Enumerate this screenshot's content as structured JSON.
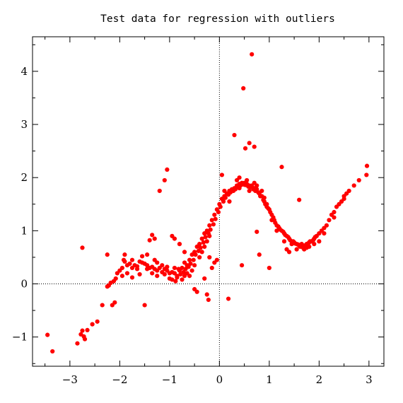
{
  "chart_data": {
    "type": "scatter",
    "title": "Test data for regression with outliers",
    "xlabel": "",
    "ylabel": "",
    "xlim": [
      -3.75,
      3.3
    ],
    "ylim": [
      -1.55,
      4.65
    ],
    "x_ticks": [
      -3,
      -2,
      -1,
      0,
      1,
      2,
      3
    ],
    "x_tick_labels": [
      "−3",
      "−2",
      "−1",
      "0",
      "1",
      "2",
      "3"
    ],
    "y_ticks": [
      -1,
      0,
      1,
      2,
      3,
      4
    ],
    "y_tick_labels": [
      "−1",
      "0",
      "1",
      "2",
      "3",
      "4"
    ],
    "zero_lines": "dotted",
    "grid": false,
    "legend": "none",
    "marker_color": "#ff0000",
    "series": [
      {
        "name": "",
        "points": [
          [
            -3.45,
            -0.96
          ],
          [
            -3.35,
            -1.27
          ],
          [
            -2.85,
            -1.12
          ],
          [
            -2.78,
            -0.95
          ],
          [
            -2.75,
            -0.88
          ],
          [
            -2.72,
            -0.99
          ],
          [
            -2.7,
            -1.04
          ],
          [
            -2.65,
            -0.87
          ],
          [
            -2.55,
            -0.76
          ],
          [
            -2.45,
            -0.71
          ],
          [
            -2.35,
            -0.4
          ],
          [
            -2.25,
            -0.05
          ],
          [
            -2.22,
            -0.03
          ],
          [
            -2.18,
            0.02
          ],
          [
            -2.12,
            0.05
          ],
          [
            -2.08,
            0.1
          ],
          [
            -2.05,
            0.2
          ],
          [
            -2.0,
            0.25
          ],
          [
            -1.95,
            0.3
          ],
          [
            -1.92,
            0.45
          ],
          [
            -1.9,
            0.42
          ],
          [
            -1.85,
            0.35
          ],
          [
            -1.8,
            0.38
          ],
          [
            -1.75,
            0.3
          ],
          [
            -1.7,
            0.35
          ],
          [
            -1.65,
            0.33
          ],
          [
            -1.6,
            0.42
          ],
          [
            -1.55,
            0.4
          ],
          [
            -1.5,
            0.38
          ],
          [
            -1.45,
            0.35
          ],
          [
            -1.4,
            0.3
          ],
          [
            -1.35,
            0.32
          ],
          [
            -1.3,
            0.28
          ],
          [
            -1.25,
            0.25
          ],
          [
            -1.2,
            0.3
          ],
          [
            -1.15,
            0.22
          ],
          [
            -1.1,
            0.28
          ],
          [
            -1.05,
            0.25
          ],
          [
            -1.0,
            0.2
          ],
          [
            -0.95,
            0.22
          ],
          [
            -0.9,
            0.2
          ],
          [
            -0.85,
            0.15
          ],
          [
            -0.8,
            0.25
          ],
          [
            -0.75,
            0.3
          ],
          [
            -0.7,
            0.4
          ],
          [
            -0.65,
            0.35
          ],
          [
            -0.6,
            0.45
          ],
          [
            -0.55,
            0.55
          ],
          [
            -0.5,
            0.6
          ],
          [
            -0.45,
            0.7
          ],
          [
            -0.4,
            0.75
          ],
          [
            -0.35,
            0.85
          ],
          [
            -0.3,
            0.95
          ],
          [
            -0.25,
            1.0
          ],
          [
            -0.2,
            1.1
          ],
          [
            -0.15,
            1.2
          ],
          [
            -0.1,
            1.3
          ],
          [
            -0.05,
            1.4
          ],
          [
            0.0,
            1.5
          ],
          [
            0.05,
            1.6
          ],
          [
            0.1,
            1.65
          ],
          [
            0.15,
            1.7
          ],
          [
            0.2,
            1.75
          ],
          [
            0.25,
            1.78
          ],
          [
            0.3,
            1.8
          ],
          [
            0.35,
            1.85
          ],
          [
            0.4,
            1.88
          ],
          [
            0.45,
            1.9
          ],
          [
            0.5,
            1.9
          ],
          [
            0.55,
            1.88
          ],
          [
            0.6,
            1.85
          ],
          [
            0.65,
            1.85
          ],
          [
            0.7,
            1.8
          ],
          [
            0.75,
            1.78
          ],
          [
            0.8,
            1.7
          ],
          [
            0.85,
            1.65
          ],
          [
            0.9,
            1.55
          ],
          [
            0.95,
            1.45
          ],
          [
            1.0,
            1.4
          ],
          [
            1.05,
            1.3
          ],
          [
            1.1,
            1.2
          ],
          [
            1.15,
            1.1
          ],
          [
            1.2,
            1.05
          ],
          [
            1.25,
            1.0
          ],
          [
            1.3,
            0.95
          ],
          [
            1.35,
            0.9
          ],
          [
            1.4,
            0.85
          ],
          [
            1.45,
            0.8
          ],
          [
            1.5,
            0.78
          ],
          [
            1.55,
            0.75
          ],
          [
            1.6,
            0.72
          ],
          [
            1.65,
            0.7
          ],
          [
            1.7,
            0.72
          ],
          [
            1.75,
            0.75
          ],
          [
            1.8,
            0.78
          ],
          [
            1.85,
            0.8
          ],
          [
            1.9,
            0.85
          ],
          [
            1.95,
            0.9
          ],
          [
            2.0,
            0.95
          ],
          [
            2.05,
            1.0
          ],
          [
            2.1,
            1.05
          ],
          [
            2.15,
            1.1
          ],
          [
            2.2,
            1.2
          ],
          [
            2.25,
            1.3
          ],
          [
            2.3,
            1.35
          ],
          [
            2.35,
            1.45
          ],
          [
            2.4,
            1.5
          ],
          [
            2.45,
            1.55
          ],
          [
            2.5,
            1.6
          ],
          [
            2.55,
            1.7
          ],
          [
            2.6,
            1.75
          ],
          [
            2.7,
            1.85
          ],
          [
            2.8,
            1.95
          ],
          [
            2.95,
            2.05
          ],
          [
            2.96,
            2.22
          ],
          [
            -2.15,
            -0.4
          ],
          [
            -1.9,
            0.55
          ],
          [
            -1.4,
            0.82
          ],
          [
            -1.35,
            0.92
          ],
          [
            -1.3,
            0.85
          ],
          [
            -1.2,
            1.75
          ],
          [
            -1.1,
            1.95
          ],
          [
            -1.05,
            2.15
          ],
          [
            -0.95,
            0.9
          ],
          [
            -0.9,
            0.85
          ],
          [
            -0.8,
            0.75
          ],
          [
            -0.7,
            0.6
          ],
          [
            -0.5,
            -0.1
          ],
          [
            -0.45,
            -0.15
          ],
          [
            -0.3,
            0.1
          ],
          [
            -0.2,
            0.5
          ],
          [
            -0.15,
            0.3
          ],
          [
            -0.1,
            0.4
          ],
          [
            -0.05,
            0.45
          ],
          [
            -0.25,
            -0.2
          ],
          [
            -0.22,
            -0.3
          ],
          [
            0.05,
            2.05
          ],
          [
            0.1,
            1.75
          ],
          [
            0.2,
            1.55
          ],
          [
            0.3,
            2.8
          ],
          [
            0.4,
            2.0
          ],
          [
            0.45,
            0.35
          ],
          [
            0.48,
            3.68
          ],
          [
            0.52,
            2.55
          ],
          [
            0.6,
            2.65
          ],
          [
            0.65,
            4.32
          ],
          [
            0.7,
            2.58
          ],
          [
            0.75,
            0.98
          ],
          [
            0.8,
            0.55
          ],
          [
            0.95,
            1.5
          ],
          [
            1.0,
            0.3
          ],
          [
            1.25,
            2.2
          ],
          [
            1.35,
            0.65
          ],
          [
            1.4,
            0.6
          ],
          [
            1.6,
            1.58
          ],
          [
            -2.75,
            0.68
          ],
          [
            -2.25,
            0.55
          ],
          [
            -2.1,
            -0.35
          ],
          [
            -1.5,
            -0.4
          ],
          [
            0.18,
            -0.28
          ],
          [
            -1.95,
            0.15
          ],
          [
            -1.85,
            0.2
          ],
          [
            -1.75,
            0.12
          ],
          [
            -1.6,
            0.18
          ],
          [
            -1.55,
            0.52
          ],
          [
            -1.45,
            0.55
          ],
          [
            -1.3,
            0.45
          ],
          [
            -1.25,
            0.4
          ],
          [
            -1.15,
            0.35
          ],
          [
            -1.05,
            0.32
          ],
          [
            -1.0,
            0.1
          ],
          [
            -0.95,
            0.08
          ],
          [
            -0.88,
            0.05
          ],
          [
            -0.85,
            0.12
          ],
          [
            -0.82,
            0.28
          ],
          [
            -0.78,
            0.18
          ],
          [
            -0.72,
            0.22
          ],
          [
            -0.68,
            0.28
          ],
          [
            -0.62,
            0.32
          ],
          [
            -0.58,
            0.38
          ],
          [
            -0.52,
            0.45
          ],
          [
            -0.48,
            0.55
          ],
          [
            -0.42,
            0.62
          ],
          [
            -0.38,
            0.68
          ],
          [
            -0.32,
            0.78
          ],
          [
            -0.28,
            0.88
          ],
          [
            -0.22,
            0.95
          ],
          [
            -0.18,
            1.02
          ],
          [
            -0.12,
            1.12
          ],
          [
            -0.08,
            1.22
          ],
          [
            -0.02,
            1.35
          ],
          [
            0.02,
            1.45
          ],
          [
            0.08,
            1.55
          ],
          [
            0.12,
            1.62
          ],
          [
            0.18,
            1.68
          ],
          [
            0.22,
            1.72
          ],
          [
            0.28,
            1.75
          ],
          [
            0.32,
            1.78
          ],
          [
            0.38,
            1.82
          ],
          [
            0.42,
            1.85
          ],
          [
            0.48,
            1.87
          ],
          [
            0.52,
            1.86
          ],
          [
            0.58,
            1.83
          ],
          [
            0.62,
            1.82
          ],
          [
            0.68,
            1.78
          ],
          [
            0.72,
            1.75
          ],
          [
            0.78,
            1.72
          ],
          [
            0.82,
            1.65
          ],
          [
            0.88,
            1.58
          ],
          [
            0.92,
            1.5
          ],
          [
            0.98,
            1.42
          ],
          [
            1.02,
            1.35
          ],
          [
            1.08,
            1.25
          ],
          [
            1.12,
            1.15
          ],
          [
            1.18,
            1.08
          ],
          [
            1.22,
            1.02
          ],
          [
            1.28,
            0.98
          ],
          [
            1.32,
            0.92
          ],
          [
            1.38,
            0.88
          ],
          [
            1.42,
            0.82
          ],
          [
            1.48,
            0.8
          ],
          [
            1.52,
            0.76
          ],
          [
            1.58,
            0.74
          ],
          [
            1.62,
            0.7
          ],
          [
            1.68,
            0.68
          ],
          [
            1.72,
            0.7
          ],
          [
            1.78,
            0.76
          ],
          [
            1.82,
            0.8
          ],
          [
            1.88,
            0.82
          ],
          [
            1.92,
            0.88
          ],
          [
            -0.6,
            0.15
          ],
          [
            -0.55,
            0.25
          ],
          [
            -0.5,
            0.35
          ],
          [
            -0.4,
            0.5
          ],
          [
            -0.35,
            0.6
          ],
          [
            -0.3,
            0.7
          ],
          [
            -0.25,
            0.8
          ],
          [
            -0.2,
            0.9
          ],
          [
            0.35,
            1.95
          ],
          [
            0.4,
            1.8
          ],
          [
            0.55,
            1.95
          ],
          [
            0.6,
            1.75
          ],
          [
            0.7,
            1.9
          ],
          [
            0.75,
            1.85
          ],
          [
            0.85,
            1.75
          ],
          [
            1.05,
            1.2
          ],
          [
            1.15,
            1.0
          ],
          [
            1.3,
            0.8
          ],
          [
            1.45,
            0.75
          ],
          [
            1.55,
            0.65
          ],
          [
            1.65,
            0.75
          ],
          [
            1.7,
            0.65
          ],
          [
            1.75,
            0.68
          ],
          [
            1.8,
            0.7
          ],
          [
            1.9,
            0.75
          ],
          [
            -1.75,
            0.45
          ],
          [
            -1.65,
            0.28
          ],
          [
            -1.45,
            0.28
          ],
          [
            -1.35,
            0.2
          ],
          [
            -1.25,
            0.15
          ],
          [
            -1.1,
            0.18
          ],
          [
            -0.9,
            0.3
          ],
          [
            -0.75,
            0.08
          ],
          [
            -0.7,
            0.15
          ],
          [
            -0.65,
            0.2
          ],
          [
            2.0,
            0.8
          ],
          [
            2.1,
            0.95
          ],
          [
            2.3,
            1.25
          ],
          [
            2.5,
            1.65
          ],
          [
            0.9,
            1.62
          ]
        ]
      }
    ]
  }
}
